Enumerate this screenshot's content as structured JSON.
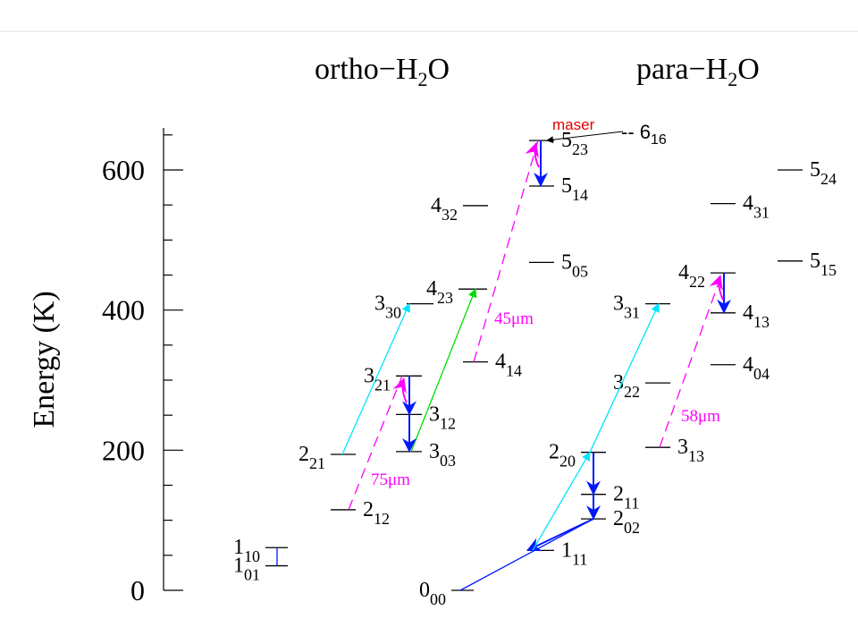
{
  "header": {
    "ortho": {
      "main": "ortho−H",
      "sub": "2",
      "tail": "O"
    },
    "para": {
      "main": "para−H",
      "sub": "2",
      "tail": "O"
    }
  },
  "axis": {
    "label": "Energy (K)",
    "ylim": [
      0,
      660
    ],
    "ticks": [
      0,
      200,
      400,
      600
    ],
    "minor_ticks": [
      50,
      100,
      150,
      250,
      300,
      350,
      450,
      500,
      550,
      650
    ]
  },
  "levels": [
    {
      "name": "1",
      "sub": "10",
      "energy": 61
    },
    {
      "name": "1",
      "sub": "01",
      "energy": 35
    },
    {
      "name": "2",
      "sub": "21",
      "energy": 194
    },
    {
      "name": "2",
      "sub": "12",
      "energy": 115
    },
    {
      "name": "3",
      "sub": "30",
      "energy": 409
    },
    {
      "name": "3",
      "sub": "21",
      "energy": 306
    },
    {
      "name": "3",
      "sub": "12",
      "energy": 251
    },
    {
      "name": "3",
      "sub": "03",
      "energy": 198
    },
    {
      "name": "4",
      "sub": "23",
      "energy": 430
    },
    {
      "name": "4",
      "sub": "32",
      "energy": 549
    },
    {
      "name": "4",
      "sub": "14",
      "energy": 326
    },
    {
      "name": "5",
      "sub": "23",
      "energy": 642
    },
    {
      "name": "5",
      "sub": "14",
      "energy": 577
    },
    {
      "name": "5",
      "sub": "05",
      "energy": 468
    },
    {
      "name": "0",
      "sub": "00",
      "energy": 0
    },
    {
      "name": "1",
      "sub": "11",
      "energy": 57
    },
    {
      "name": "2",
      "sub": "02",
      "energy": 102
    },
    {
      "name": "2",
      "sub": "11",
      "energy": 137
    },
    {
      "name": "2",
      "sub": "20",
      "energy": 197
    },
    {
      "name": "3",
      "sub": "13",
      "energy": 204
    },
    {
      "name": "3",
      "sub": "22",
      "energy": 296
    },
    {
      "name": "3",
      "sub": "31",
      "energy": 409
    },
    {
      "name": "4",
      "sub": "04",
      "energy": 322
    },
    {
      "name": "4",
      "sub": "13",
      "energy": 396
    },
    {
      "name": "4",
      "sub": "22",
      "energy": 453
    },
    {
      "name": "4",
      "sub": "31",
      "energy": 552
    },
    {
      "name": "5",
      "sub": "15",
      "energy": 470
    },
    {
      "name": "5",
      "sub": "24",
      "energy": 600
    }
  ],
  "lines": [
    "75μm",
    "45μm",
    "58μm"
  ],
  "maser": "maser",
  "maser_level": {
    "text": "-- 6",
    "sub": "16"
  }
}
